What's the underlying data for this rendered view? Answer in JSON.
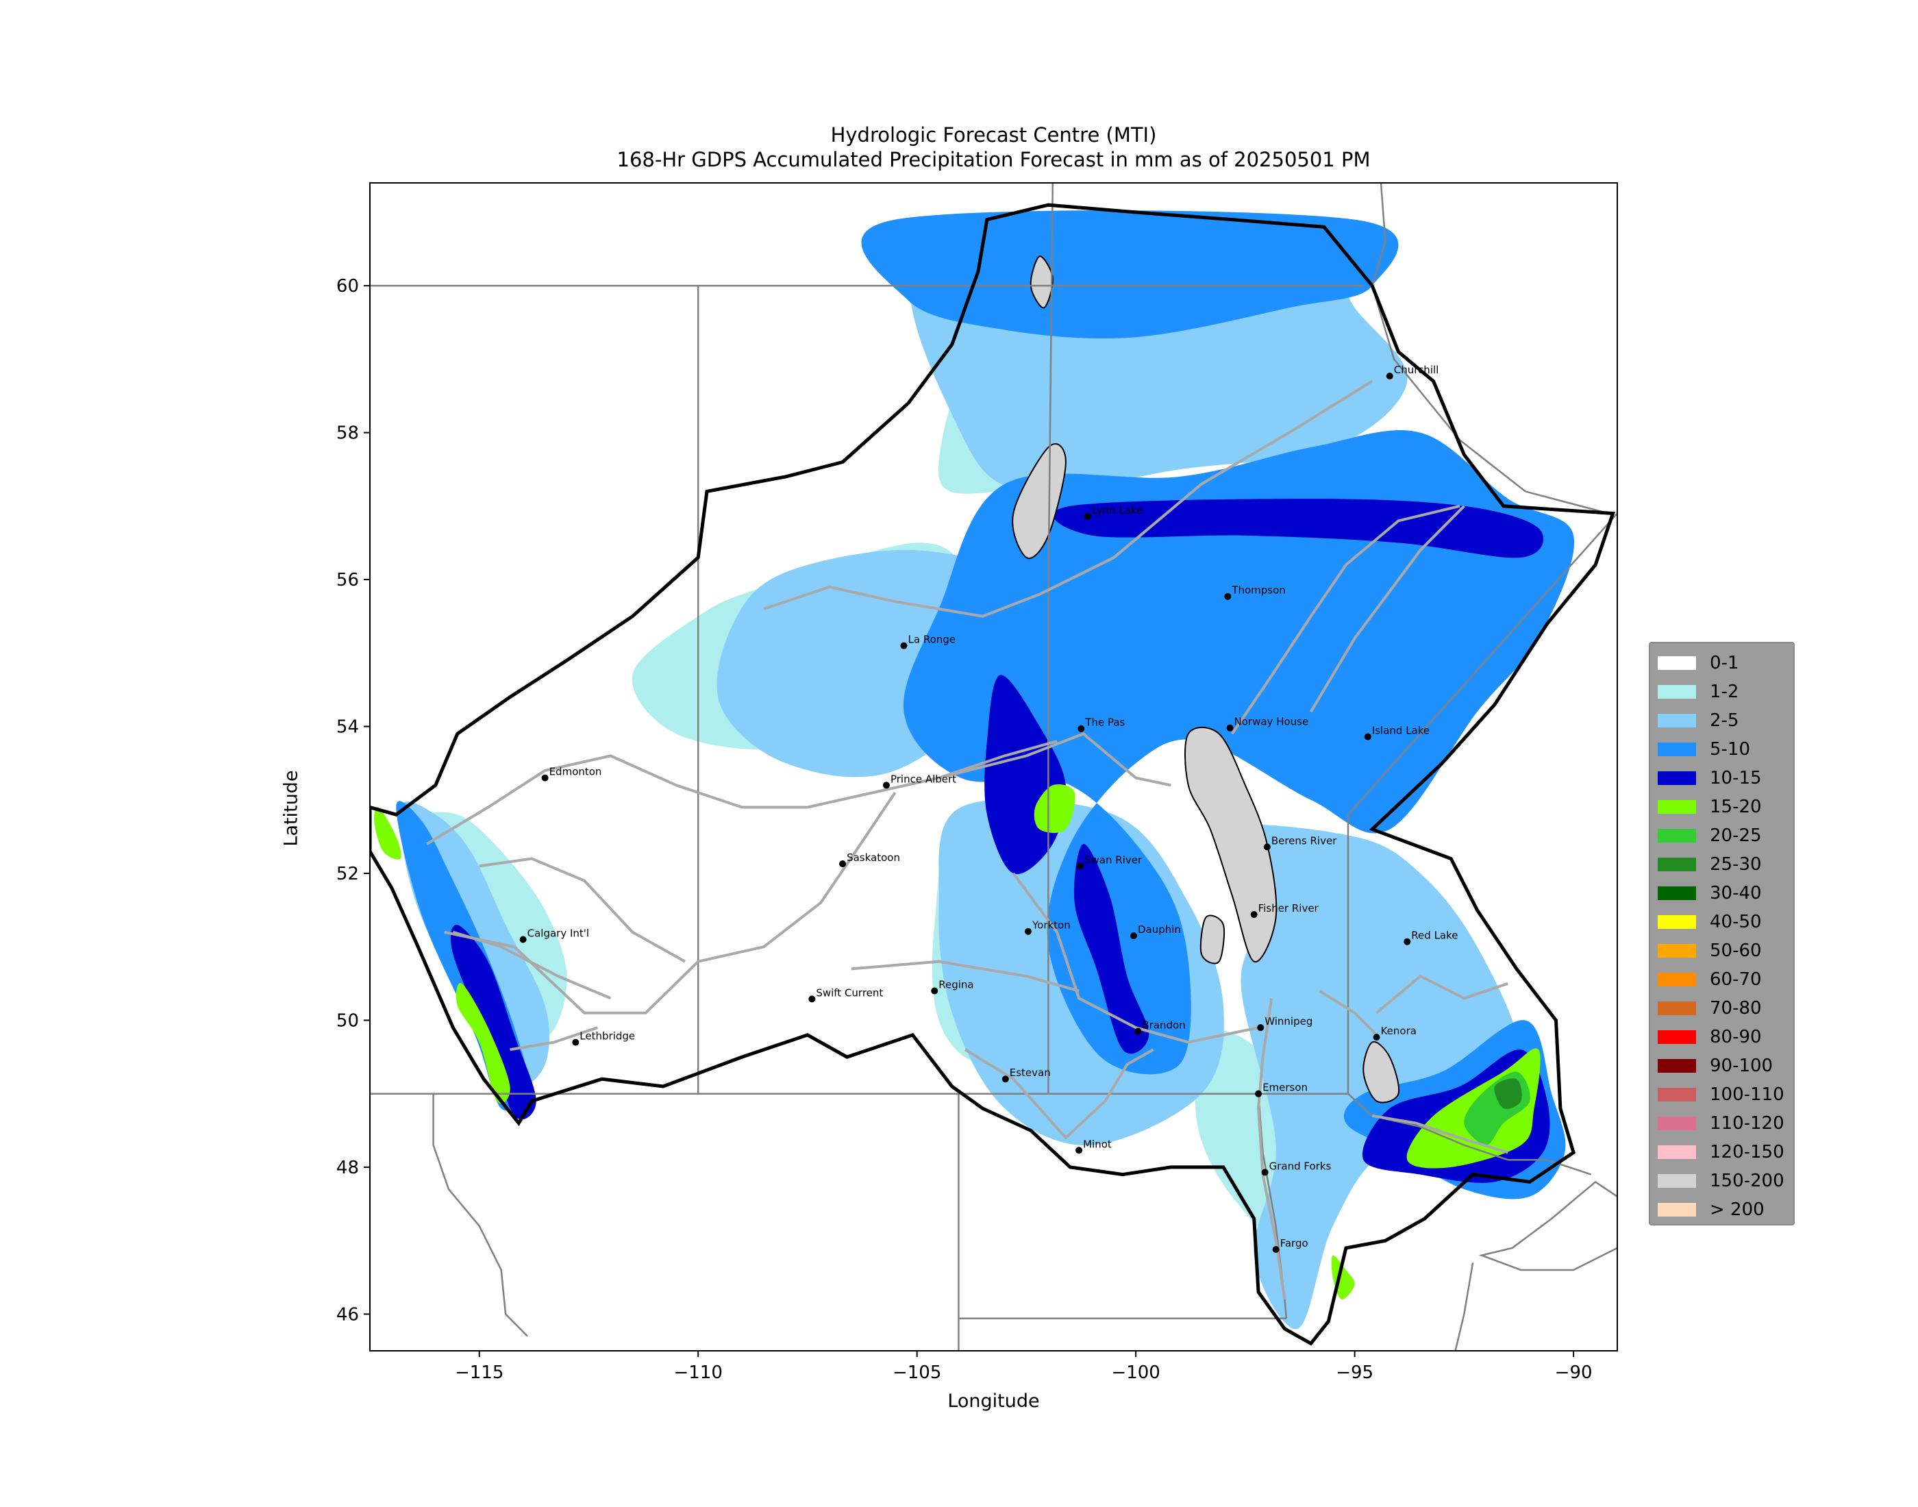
{
  "header": {
    "title_line1": "Hydrologic Forecast Centre (MTI)",
    "title_line2": "168-Hr GDPS Accumulated Precipitation Forecast in mm as of 20250501 PM"
  },
  "axes": {
    "xlabel": "Longitude",
    "ylabel": "Latitude",
    "lon_range": [
      -117.5,
      -89
    ],
    "lat_range": [
      45.5,
      61.4
    ],
    "x_ticks": [
      {
        "value": -115,
        "label": "−115"
      },
      {
        "value": -110,
        "label": "−110"
      },
      {
        "value": -105,
        "label": "−105"
      },
      {
        "value": -100,
        "label": "−100"
      },
      {
        "value": -95,
        "label": "−95"
      },
      {
        "value": -90,
        "label": "−90"
      }
    ],
    "y_ticks": [
      {
        "value": 46,
        "label": "46"
      },
      {
        "value": 48,
        "label": "48"
      },
      {
        "value": 50,
        "label": "50"
      },
      {
        "value": 52,
        "label": "52"
      },
      {
        "value": 54,
        "label": "54"
      },
      {
        "value": 56,
        "label": "56"
      },
      {
        "value": 58,
        "label": "58"
      },
      {
        "value": 60,
        "label": "60"
      }
    ]
  },
  "legend": [
    {
      "label": "0-1",
      "color": "#ffffff"
    },
    {
      "label": "1-2",
      "color": "#aeeeee"
    },
    {
      "label": "2-5",
      "color": "#87cefa"
    },
    {
      "label": "5-10",
      "color": "#1e90ff"
    },
    {
      "label": "10-15",
      "color": "#0000cd"
    },
    {
      "label": "15-20",
      "color": "#7cfc00"
    },
    {
      "label": "20-25",
      "color": "#32cd32"
    },
    {
      "label": "25-30",
      "color": "#228b22"
    },
    {
      "label": "30-40",
      "color": "#006400"
    },
    {
      "label": "40-50",
      "color": "#ffff00"
    },
    {
      "label": "50-60",
      "color": "#ffa500"
    },
    {
      "label": "60-70",
      "color": "#ff8c00"
    },
    {
      "label": "70-80",
      "color": "#d2691e"
    },
    {
      "label": "80-90",
      "color": "#ff0000"
    },
    {
      "label": "90-100",
      "color": "#800000"
    },
    {
      "label": "100-110",
      "color": "#cd5c5c"
    },
    {
      "label": "110-120",
      "color": "#db7093"
    },
    {
      "label": "120-150",
      "color": "#ffc0cb"
    },
    {
      "label": "150-200",
      "color": "#d3d3d3"
    },
    {
      "label": "> 200",
      "color": "#ffdab9"
    }
  ],
  "cities": [
    {
      "name": "Churchill",
      "lon": -94.2,
      "lat": 58.77
    },
    {
      "name": "Lynn Lake",
      "lon": -101.1,
      "lat": 56.86
    },
    {
      "name": "Thompson",
      "lon": -97.9,
      "lat": 55.77
    },
    {
      "name": "La Ronge",
      "lon": -105.3,
      "lat": 55.1
    },
    {
      "name": "The Pas",
      "lon": -101.25,
      "lat": 53.97
    },
    {
      "name": "Norway House",
      "lon": -97.85,
      "lat": 53.98
    },
    {
      "name": "Island Lake",
      "lon": -94.7,
      "lat": 53.86
    },
    {
      "name": "Edmonton",
      "lon": -113.5,
      "lat": 53.3
    },
    {
      "name": "Prince Albert",
      "lon": -105.7,
      "lat": 53.2
    },
    {
      "name": "Berens River",
      "lon": -97.0,
      "lat": 52.36
    },
    {
      "name": "Saskatoon",
      "lon": -106.7,
      "lat": 52.13
    },
    {
      "name": "Swan River",
      "lon": -101.27,
      "lat": 52.1
    },
    {
      "name": "Fisher River",
      "lon": -97.3,
      "lat": 51.44
    },
    {
      "name": "Yorkton",
      "lon": -102.46,
      "lat": 51.21
    },
    {
      "name": "Calgary Int'l",
      "lon": -114.0,
      "lat": 51.1
    },
    {
      "name": "Dauphin",
      "lon": -100.05,
      "lat": 51.15
    },
    {
      "name": "Red Lake",
      "lon": -93.8,
      "lat": 51.07
    },
    {
      "name": "Regina",
      "lon": -104.6,
      "lat": 50.4
    },
    {
      "name": "Swift Current",
      "lon": -107.4,
      "lat": 50.29
    },
    {
      "name": "Brandon",
      "lon": -99.95,
      "lat": 49.85
    },
    {
      "name": "Winnipeg",
      "lon": -97.15,
      "lat": 49.9
    },
    {
      "name": "Kenora",
      "lon": -94.5,
      "lat": 49.77
    },
    {
      "name": "Lethbridge",
      "lon": -112.8,
      "lat": 49.7
    },
    {
      "name": "Estevan",
      "lon": -102.98,
      "lat": 49.2
    },
    {
      "name": "Emerson",
      "lon": -97.2,
      "lat": 49.0
    },
    {
      "name": "Grand Forks",
      "lon": -97.05,
      "lat": 47.93
    },
    {
      "name": "Minot",
      "lon": -101.3,
      "lat": 48.23
    },
    {
      "name": "Fargo",
      "lon": -96.8,
      "lat": 46.88
    }
  ],
  "precip_zones": [
    {
      "band": "1-2",
      "points": [
        [
          -103.5,
          59.3
        ],
        [
          -101.0,
          59.6
        ],
        [
          -98.5,
          59.6
        ],
        [
          -96.0,
          59.2
        ],
        [
          -95.5,
          58.5
        ],
        [
          -98.0,
          58.0
        ],
        [
          -101.0,
          57.4
        ],
        [
          -103.0,
          57.2
        ],
        [
          -104.5,
          57.4
        ]
      ]
    },
    {
      "band": "1-2",
      "points": [
        [
          -108.5,
          55.9
        ],
        [
          -105.0,
          56.5
        ],
        [
          -103.8,
          56.0
        ],
        [
          -103.5,
          54.8
        ],
        [
          -105.5,
          54.2
        ],
        [
          -108.0,
          53.7
        ],
        [
          -110.5,
          53.9
        ],
        [
          -111.5,
          54.7
        ],
        [
          -110.0,
          55.5
        ]
      ]
    },
    {
      "band": "1-2",
      "points": [
        [
          -116.5,
          52.7
        ],
        [
          -115.5,
          52.8
        ],
        [
          -114.5,
          52.3
        ],
        [
          -113.5,
          51.5
        ],
        [
          -113.0,
          50.6
        ],
        [
          -113.4,
          49.8
        ],
        [
          -114.4,
          49.9
        ],
        [
          -115.3,
          51.0
        ],
        [
          -116.2,
          52.0
        ]
      ]
    },
    {
      "band": "1-2",
      "points": [
        [
          -104.0,
          52.8
        ],
        [
          -101.5,
          52.5
        ],
        [
          -100.5,
          51.4
        ],
        [
          -100.0,
          50.4
        ],
        [
          -101.5,
          49.6
        ],
        [
          -103.5,
          49.4
        ],
        [
          -104.5,
          50.0
        ],
        [
          -104.6,
          51.3
        ]
      ]
    },
    {
      "band": "1-2",
      "points": [
        [
          -98.4,
          49.8
        ],
        [
          -97.2,
          49.6
        ],
        [
          -96.2,
          48.6
        ],
        [
          -96.5,
          47.0
        ],
        [
          -97.8,
          47.6
        ],
        [
          -98.6,
          48.6
        ]
      ]
    },
    {
      "band": "2-5",
      "points": [
        [
          -105.0,
          60.3
        ],
        [
          -100.5,
          60.6
        ],
        [
          -96.0,
          60.5
        ],
        [
          -95.0,
          59.7
        ],
        [
          -93.8,
          58.7
        ],
        [
          -95.5,
          57.8
        ],
        [
          -99.0,
          57.5
        ],
        [
          -102.5,
          57.2
        ],
        [
          -104.0,
          58.0
        ]
      ]
    },
    {
      "band": "2-5",
      "points": [
        [
          -108.0,
          56.1
        ],
        [
          -105.0,
          56.4
        ],
        [
          -102.5,
          55.9
        ],
        [
          -103.0,
          54.6
        ],
        [
          -105.5,
          53.4
        ],
        [
          -108.0,
          53.5
        ],
        [
          -109.5,
          54.3
        ],
        [
          -109.2,
          55.4
        ]
      ]
    },
    {
      "band": "2-5",
      "points": [
        [
          -116.8,
          52.9
        ],
        [
          -116.0,
          52.8
        ],
        [
          -115.2,
          52.3
        ],
        [
          -114.4,
          51.3
        ],
        [
          -113.5,
          50.2
        ],
        [
          -113.5,
          49.4
        ],
        [
          -114.2,
          49.2
        ],
        [
          -115.5,
          50.4
        ],
        [
          -116.5,
          51.7
        ]
      ]
    },
    {
      "band": "2-5",
      "points": [
        [
          -104.0,
          52.9
        ],
        [
          -100.5,
          52.8
        ],
        [
          -98.8,
          51.6
        ],
        [
          -98.0,
          50.2
        ],
        [
          -98.5,
          49.0
        ],
        [
          -101.0,
          48.3
        ],
        [
          -103.0,
          48.8
        ],
        [
          -104.2,
          50.1
        ],
        [
          -104.5,
          51.6
        ]
      ]
    },
    {
      "band": "2-5",
      "points": [
        [
          -98.0,
          52.6
        ],
        [
          -95.0,
          52.5
        ],
        [
          -93.5,
          52.0
        ],
        [
          -92.2,
          51.0
        ],
        [
          -91.2,
          49.5
        ],
        [
          -92.0,
          48.4
        ],
        [
          -94.3,
          48.2
        ],
        [
          -95.5,
          47.2
        ],
        [
          -96.3,
          45.8
        ],
        [
          -97.3,
          46.8
        ],
        [
          -96.8,
          48.3
        ],
        [
          -97.6,
          50.5
        ],
        [
          -97.0,
          51.6
        ]
      ]
    },
    {
      "band": "5-10",
      "points": [
        [
          -105.5,
          60.9
        ],
        [
          -95.0,
          60.9
        ],
        [
          -94.6,
          60.0
        ],
        [
          -96.5,
          59.7
        ],
        [
          -100.0,
          59.3
        ],
        [
          -103.0,
          59.4
        ],
        [
          -105.2,
          59.8
        ]
      ]
    },
    {
      "band": "5-10",
      "points": [
        [
          -103.0,
          57.3
        ],
        [
          -99.0,
          57.4
        ],
        [
          -96.0,
          57.8
        ],
        [
          -93.5,
          58.0
        ],
        [
          -91.5,
          57.1
        ],
        [
          -90.0,
          56.6
        ],
        [
          -90.8,
          55.2
        ],
        [
          -92.2,
          54.2
        ],
        [
          -94.2,
          52.6
        ],
        [
          -96.0,
          53.0
        ],
        [
          -98.5,
          53.8
        ],
        [
          -100.0,
          53.5
        ],
        [
          -101.5,
          52.4
        ],
        [
          -102.0,
          51.0
        ],
        [
          -100.8,
          49.5
        ],
        [
          -99.0,
          49.4
        ],
        [
          -98.8,
          50.8
        ],
        [
          -99.5,
          52.0
        ],
        [
          -101.5,
          53.2
        ],
        [
          -104.0,
          53.3
        ],
        [
          -105.3,
          54.2
        ],
        [
          -104.5,
          55.6
        ]
      ]
    },
    {
      "band": "5-10",
      "points": [
        [
          -116.9,
          52.9
        ],
        [
          -116.3,
          52.7
        ],
        [
          -115.6,
          51.9
        ],
        [
          -114.9,
          51.0
        ],
        [
          -114.2,
          49.9
        ],
        [
          -113.9,
          49.1
        ],
        [
          -114.5,
          48.8
        ],
        [
          -115.1,
          49.8
        ],
        [
          -116.3,
          51.4
        ]
      ]
    },
    {
      "band": "5-10",
      "points": [
        [
          -94.8,
          49.0
        ],
        [
          -93.0,
          49.3
        ],
        [
          -91.1,
          50.0
        ],
        [
          -90.5,
          49.0
        ],
        [
          -90.2,
          48.2
        ],
        [
          -91.0,
          47.6
        ],
        [
          -92.5,
          47.7
        ],
        [
          -94.0,
          48.2
        ],
        [
          -95.2,
          48.6
        ]
      ]
    },
    {
      "band": "10-15",
      "points": [
        [
          -103.1,
          54.7
        ],
        [
          -102.2,
          54.0
        ],
        [
          -101.6,
          53.2
        ],
        [
          -101.9,
          52.4
        ],
        [
          -102.8,
          52.0
        ],
        [
          -103.4,
          52.8
        ],
        [
          -103.4,
          53.8
        ]
      ]
    },
    {
      "band": "10-15",
      "points": [
        [
          -101.2,
          52.4
        ],
        [
          -100.6,
          51.7
        ],
        [
          -100.2,
          50.6
        ],
        [
          -99.7,
          49.8
        ],
        [
          -100.3,
          49.6
        ],
        [
          -100.9,
          50.7
        ],
        [
          -101.4,
          51.6
        ]
      ]
    },
    {
      "band": "10-15",
      "points": [
        [
          -101.5,
          57.0
        ],
        [
          -96.0,
          57.1
        ],
        [
          -92.5,
          57.0
        ],
        [
          -90.8,
          56.7
        ],
        [
          -91.2,
          56.3
        ],
        [
          -94.0,
          56.5
        ],
        [
          -97.5,
          56.6
        ],
        [
          -101.0,
          56.6
        ]
      ]
    },
    {
      "band": "10-15",
      "points": [
        [
          -115.5,
          51.3
        ],
        [
          -114.8,
          50.8
        ],
        [
          -114.2,
          49.8
        ],
        [
          -113.7,
          48.9
        ],
        [
          -114.2,
          48.7
        ],
        [
          -114.8,
          49.7
        ],
        [
          -115.6,
          50.9
        ]
      ]
    },
    {
      "band": "10-15",
      "points": [
        [
          -94.2,
          48.8
        ],
        [
          -92.6,
          49.1
        ],
        [
          -91.2,
          49.6
        ],
        [
          -90.6,
          48.9
        ],
        [
          -90.7,
          48.2
        ],
        [
          -91.8,
          47.8
        ],
        [
          -93.5,
          47.9
        ],
        [
          -94.8,
          48.1
        ]
      ]
    },
    {
      "band": "15-20",
      "points": [
        [
          -101.9,
          53.2
        ],
        [
          -101.4,
          53.1
        ],
        [
          -101.6,
          52.6
        ],
        [
          -102.2,
          52.6
        ],
        [
          -102.3,
          52.9
        ]
      ]
    },
    {
      "band": "15-20",
      "points": [
        [
          -115.4,
          50.5
        ],
        [
          -114.8,
          49.9
        ],
        [
          -114.3,
          49.1
        ],
        [
          -114.6,
          48.9
        ],
        [
          -115.0,
          49.7
        ],
        [
          -115.5,
          50.2
        ]
      ]
    },
    {
      "band": "15-20",
      "points": [
        [
          -117.3,
          52.9
        ],
        [
          -116.9,
          52.5
        ],
        [
          -116.8,
          52.2
        ],
        [
          -117.2,
          52.3
        ],
        [
          -117.4,
          52.7
        ]
      ]
    },
    {
      "band": "15-20",
      "points": [
        [
          -93.2,
          48.7
        ],
        [
          -91.6,
          49.3
        ],
        [
          -90.8,
          49.6
        ],
        [
          -90.9,
          48.8
        ],
        [
          -91.2,
          48.3
        ],
        [
          -92.8,
          48.0
        ],
        [
          -93.8,
          48.1
        ]
      ]
    },
    {
      "band": "15-20",
      "points": [
        [
          -95.5,
          46.8
        ],
        [
          -95.2,
          46.6
        ],
        [
          -95.0,
          46.4
        ],
        [
          -95.3,
          46.2
        ],
        [
          -95.5,
          46.5
        ]
      ]
    },
    {
      "band": "20-25",
      "points": [
        [
          -92.1,
          49.0
        ],
        [
          -91.3,
          49.3
        ],
        [
          -91.0,
          48.9
        ],
        [
          -91.6,
          48.6
        ],
        [
          -92.0,
          48.3
        ],
        [
          -92.5,
          48.6
        ]
      ]
    },
    {
      "band": "25-30",
      "points": [
        [
          -91.8,
          49.1
        ],
        [
          -91.3,
          49.2
        ],
        [
          -91.2,
          48.9
        ],
        [
          -91.6,
          48.8
        ]
      ]
    },
    {
      "band": "150-200",
      "points": [
        [
          -98.8,
          53.9
        ],
        [
          -98.1,
          53.9
        ],
        [
          -97.5,
          53.2
        ],
        [
          -97.0,
          52.4
        ],
        [
          -96.8,
          51.4
        ],
        [
          -97.3,
          50.8
        ],
        [
          -97.8,
          51.7
        ],
        [
          -98.3,
          52.6
        ],
        [
          -98.8,
          53.2
        ]
      ]
    },
    {
      "band": "150-200",
      "points": [
        [
          -98.4,
          51.4
        ],
        [
          -98.0,
          51.3
        ],
        [
          -98.1,
          50.8
        ],
        [
          -98.5,
          50.9
        ]
      ]
    },
    {
      "band": "150-200",
      "points": [
        [
          -102.0,
          57.8
        ],
        [
          -101.6,
          57.6
        ],
        [
          -102.0,
          56.6
        ],
        [
          -102.5,
          56.3
        ],
        [
          -102.8,
          56.9
        ]
      ]
    },
    {
      "band": "150-200",
      "points": [
        [
          -102.2,
          60.4
        ],
        [
          -101.9,
          60.1
        ],
        [
          -102.1,
          59.7
        ],
        [
          -102.4,
          60.0
        ]
      ]
    },
    {
      "band": "150-200",
      "points": [
        [
          -94.6,
          49.7
        ],
        [
          -94.2,
          49.5
        ],
        [
          -94.0,
          49.0
        ],
        [
          -94.5,
          48.9
        ],
        [
          -94.8,
          49.3
        ]
      ]
    }
  ]
}
